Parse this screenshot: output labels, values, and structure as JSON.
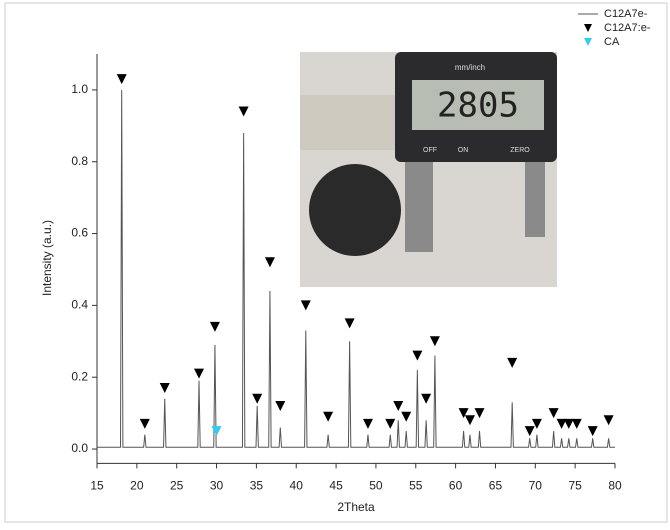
{
  "chart_data": {
    "type": "line",
    "xlabel": "2Theta",
    "ylabel": "Intensity (a.u.)",
    "xlim": [
      15,
      80
    ],
    "xticks": [
      15,
      20,
      25,
      30,
      35,
      40,
      45,
      50,
      55,
      60,
      65,
      70,
      75,
      80
    ],
    "ylim": [
      -0.04,
      1.1
    ],
    "yticks": [
      {
        "value": 0,
        "label": "0.0"
      },
      0.2,
      0.4,
      0.6,
      0.8,
      {
        "value": 1,
        "label": "1.0"
      }
    ],
    "legend": "top-right",
    "series": [
      {
        "name": "C12A7e-",
        "type": "line",
        "color": "#555555",
        "x": [
          15,
          17.95,
          18.1,
          18.25,
          20.85,
          21.0,
          21.15,
          23.35,
          23.5,
          23.65,
          27.65,
          27.8,
          27.95,
          29.65,
          29.8,
          29.95,
          33.25,
          33.4,
          33.55,
          34.95,
          35.1,
          35.25,
          36.55,
          36.7,
          36.85,
          37.85,
          38.0,
          38.15,
          41.05,
          41.2,
          41.35,
          43.85,
          44.0,
          44.15,
          46.55,
          46.7,
          46.85,
          48.85,
          49.0,
          49.15,
          51.65,
          51.8,
          51.95,
          52.65,
          52.8,
          52.95,
          53.65,
          53.8,
          53.95,
          55.05,
          55.2,
          55.35,
          56.15,
          56.3,
          56.45,
          57.25,
          57.4,
          57.55,
          60.85,
          61.0,
          61.15,
          61.65,
          61.8,
          61.95,
          62.85,
          63.0,
          63.15,
          66.95,
          67.1,
          67.25,
          69.15,
          69.3,
          69.45,
          70.05,
          70.2,
          70.35,
          72.15,
          72.3,
          72.45,
          73.15,
          73.3,
          73.45,
          74.05,
          74.2,
          74.35,
          75.05,
          75.2,
          75.35,
          77.05,
          77.2,
          77.35,
          79.05,
          79.2,
          79.35,
          80
        ],
        "values": [
          0.005,
          0.005,
          1.0,
          0.005,
          0.005,
          0.04,
          0.005,
          0.005,
          0.14,
          0.005,
          0.005,
          0.19,
          0.005,
          0.005,
          0.29,
          0.005,
          0.005,
          0.88,
          0.005,
          0.005,
          0.12,
          0.005,
          0.005,
          0.44,
          0.005,
          0.005,
          0.06,
          0.005,
          0.005,
          0.33,
          0.005,
          0.005,
          0.04,
          0.005,
          0.005,
          0.3,
          0.005,
          0.005,
          0.04,
          0.005,
          0.005,
          0.04,
          0.005,
          0.005,
          0.08,
          0.005,
          0.005,
          0.05,
          0.005,
          0.005,
          0.22,
          0.005,
          0.005,
          0.08,
          0.005,
          0.005,
          0.26,
          0.005,
          0.005,
          0.05,
          0.005,
          0.005,
          0.04,
          0.005,
          0.005,
          0.05,
          0.005,
          0.005,
          0.13,
          0.005,
          0.005,
          0.03,
          0.005,
          0.005,
          0.04,
          0.005,
          0.005,
          0.05,
          0.005,
          0.005,
          0.03,
          0.005,
          0.005,
          0.03,
          0.005,
          0.005,
          0.03,
          0.005,
          0.005,
          0.03,
          0.005,
          0.005,
          0.03,
          0.005,
          0.005
        ]
      },
      {
        "name": "C12A7:e-",
        "type": "scatter",
        "color": "#000000",
        "x": [
          18.1,
          21.0,
          23.5,
          27.8,
          29.8,
          33.4,
          35.1,
          36.7,
          38.0,
          41.2,
          44.0,
          46.7,
          49.0,
          51.8,
          52.8,
          53.8,
          55.2,
          56.3,
          57.4,
          61.0,
          61.8,
          63.0,
          67.1,
          69.3,
          70.2,
          72.3,
          73.3,
          74.2,
          75.2,
          77.2,
          79.2
        ],
        "values": [
          1.03,
          0.07,
          0.17,
          0.21,
          0.34,
          0.94,
          0.14,
          0.52,
          0.12,
          0.4,
          0.09,
          0.35,
          0.07,
          0.07,
          0.12,
          0.09,
          0.26,
          0.14,
          0.3,
          0.1,
          0.08,
          0.1,
          0.24,
          0.05,
          0.07,
          0.1,
          0.07,
          0.07,
          0.07,
          0.05,
          0.08
        ]
      },
      {
        "name": "CA",
        "type": "scatter",
        "color": "#33ccee",
        "x": [
          30.0
        ],
        "values": [
          0.05
        ]
      }
    ]
  },
  "inset": {
    "texts": [
      "mm/inch",
      "2805",
      "OFF",
      "ON",
      "ZERO"
    ]
  }
}
